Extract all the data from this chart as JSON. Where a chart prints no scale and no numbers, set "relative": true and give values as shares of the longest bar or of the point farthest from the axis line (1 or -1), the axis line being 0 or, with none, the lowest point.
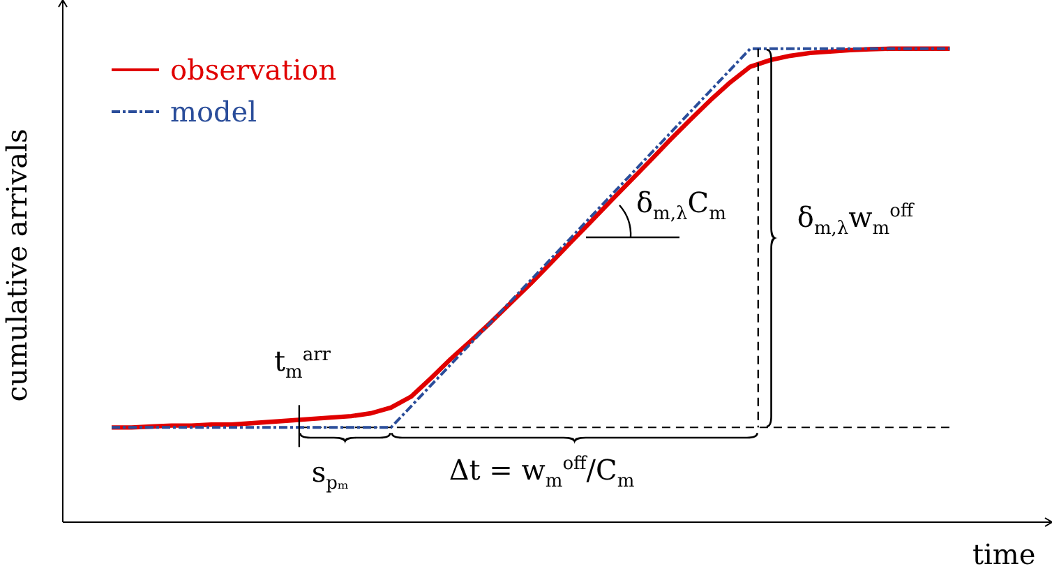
{
  "chart_data": {
    "type": "line",
    "relative": true,
    "xlabel": "time",
    "ylabel": "cumulative arrivals",
    "legend": "top left",
    "marker": "none",
    "categories": [
      null,
      null,
      null,
      null,
      null,
      null,
      null,
      null,
      null,
      null,
      null,
      null,
      null,
      null,
      null,
      null,
      null,
      null,
      null,
      null,
      null,
      null,
      null,
      null,
      null,
      null,
      null,
      null,
      null,
      null,
      null,
      null,
      null,
      null,
      null,
      null,
      null,
      null,
      null,
      null,
      null,
      null,
      null
    ],
    "series": [
      {
        "name": "observation",
        "color": "#e00000",
        "line_style": "solid",
        "values": [
          0.2,
          0.2,
          0.202,
          0.204,
          0.204,
          0.206,
          0.206,
          0.209,
          0.212,
          0.215,
          0.218,
          0.221,
          0.224,
          0.23,
          0.242,
          0.265,
          0.304,
          0.345,
          0.383,
          0.422,
          0.463,
          0.504,
          0.547,
          0.591,
          0.634,
          0.678,
          0.721,
          0.764,
          0.808,
          0.85,
          0.891,
          0.929,
          0.962,
          0.976,
          0.985,
          0.991,
          0.994,
          0.997,
          0.999,
          1,
          1,
          1,
          1
        ]
      },
      {
        "name": "model",
        "color": "#2a4d9a",
        "line_style": "dashdot",
        "values": [
          0.2,
          null,
          null,
          null,
          null,
          null,
          null,
          null,
          null,
          null,
          null,
          null,
          null,
          null,
          0.2,
          null,
          null,
          null,
          null,
          null,
          null,
          null,
          null,
          null,
          null,
          null,
          null,
          null,
          null,
          null,
          null,
          null,
          1,
          null,
          null,
          null,
          null,
          null,
          null,
          null,
          null,
          null,
          1
        ]
      }
    ],
    "ref_lines": [
      {
        "axis": "y",
        "value": 0.2,
        "line_style": "dashed",
        "color": "#000000"
      }
    ],
    "annotations": [
      "t$_{m}$$^{arr}$",
      "s$_{pₘ}$",
      "Δt = w$_{m}$$^{off}$/C$_{m}$",
      "δ$_{m,λ}$C$_{m}$",
      "δ$_{m,λ}$w$_{m}$$^{off}$"
    ]
  }
}
